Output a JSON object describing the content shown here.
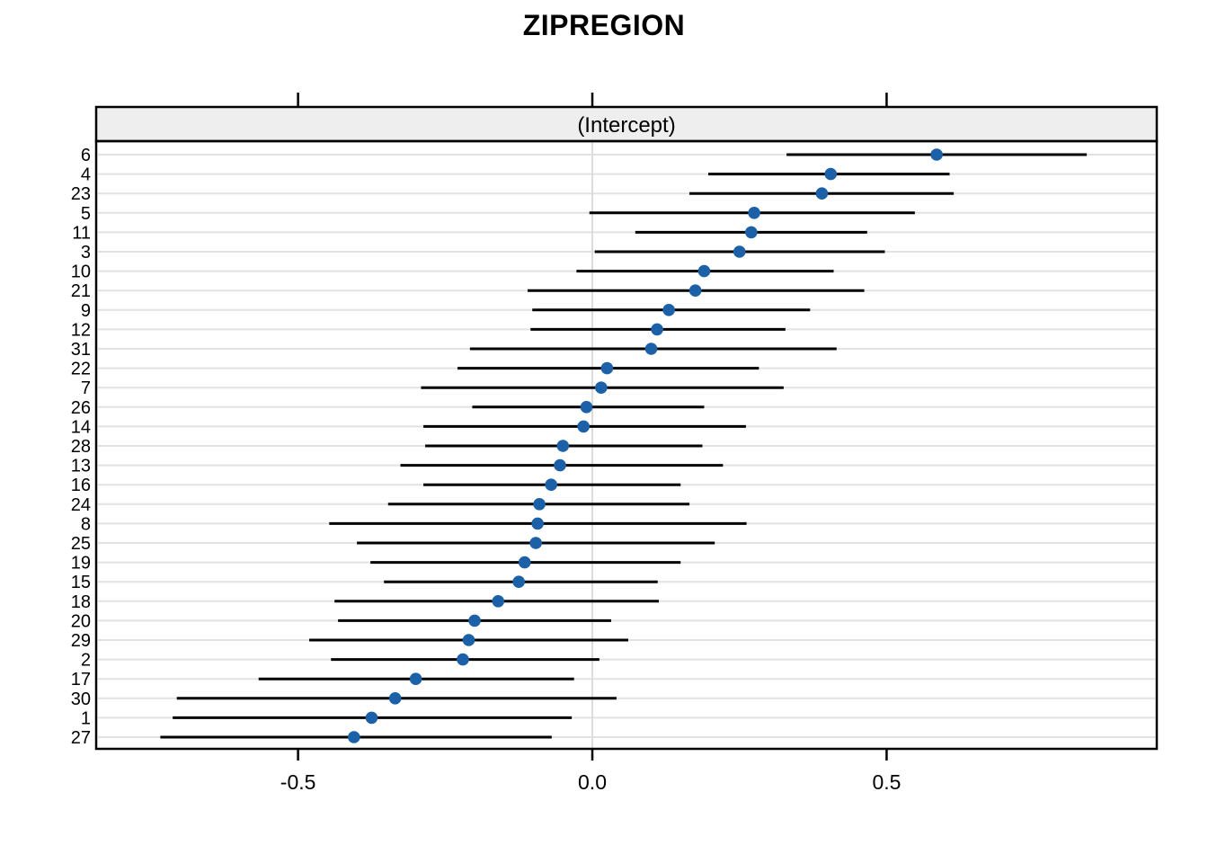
{
  "chart_data": {
    "type": "scatter",
    "subtype": "caterpillar-dotplot-with-intervals",
    "title": "ZIPREGION",
    "strip_label": "(Intercept)",
    "xlabel": "",
    "ylabel": "",
    "xlim": [
      -0.843,
      0.959
    ],
    "x_ticks": [
      -0.5,
      0.0,
      0.5
    ],
    "x_tick_labels": [
      "-0.5",
      "0.0",
      "0.5"
    ],
    "grid": "horizontal line per row, vertical line at 0",
    "legend_position": "none",
    "colors": {
      "point": "#1c61a7",
      "interval_line": "#000000",
      "gridline": "#e2e2e2",
      "zero_line": "#dcdcdc",
      "strip_fill": "#eeeeee",
      "border": "#000000"
    },
    "rows": [
      {
        "id": "6",
        "est": 0.585,
        "lo": 0.33,
        "hi": 0.84
      },
      {
        "id": "4",
        "est": 0.405,
        "lo": 0.197,
        "hi": 0.607
      },
      {
        "id": "23",
        "est": 0.39,
        "lo": 0.165,
        "hi": 0.614
      },
      {
        "id": "5",
        "est": 0.275,
        "lo": -0.005,
        "hi": 0.548
      },
      {
        "id": "11",
        "est": 0.27,
        "lo": 0.073,
        "hi": 0.467
      },
      {
        "id": "3",
        "est": 0.25,
        "lo": 0.004,
        "hi": 0.497
      },
      {
        "id": "10",
        "est": 0.19,
        "lo": -0.027,
        "hi": 0.41
      },
      {
        "id": "21",
        "est": 0.175,
        "lo": -0.11,
        "hi": 0.462
      },
      {
        "id": "9",
        "est": 0.13,
        "lo": -0.102,
        "hi": 0.37
      },
      {
        "id": "12",
        "est": 0.11,
        "lo": -0.105,
        "hi": 0.328
      },
      {
        "id": "31",
        "est": 0.1,
        "lo": -0.208,
        "hi": 0.415
      },
      {
        "id": "22",
        "est": 0.025,
        "lo": -0.229,
        "hi": 0.283
      },
      {
        "id": "7",
        "est": 0.015,
        "lo": -0.291,
        "hi": 0.325
      },
      {
        "id": "26",
        "est": -0.01,
        "lo": -0.204,
        "hi": 0.19
      },
      {
        "id": "14",
        "est": -0.015,
        "lo": -0.287,
        "hi": 0.261
      },
      {
        "id": "28",
        "est": -0.05,
        "lo": -0.284,
        "hi": 0.187
      },
      {
        "id": "13",
        "est": -0.055,
        "lo": -0.326,
        "hi": 0.222
      },
      {
        "id": "16",
        "est": -0.07,
        "lo": -0.287,
        "hi": 0.15
      },
      {
        "id": "24",
        "est": -0.09,
        "lo": -0.347,
        "hi": 0.165
      },
      {
        "id": "8",
        "est": -0.093,
        "lo": -0.447,
        "hi": 0.262
      },
      {
        "id": "25",
        "est": -0.096,
        "lo": -0.4,
        "hi": 0.208
      },
      {
        "id": "19",
        "est": -0.115,
        "lo": -0.377,
        "hi": 0.15
      },
      {
        "id": "15",
        "est": -0.125,
        "lo": -0.354,
        "hi": 0.111
      },
      {
        "id": "18",
        "est": -0.16,
        "lo": -0.438,
        "hi": 0.113
      },
      {
        "id": "20",
        "est": -0.2,
        "lo": -0.432,
        "hi": 0.032
      },
      {
        "id": "29",
        "est": -0.21,
        "lo": -0.481,
        "hi": 0.061
      },
      {
        "id": "2",
        "est": -0.22,
        "lo": -0.444,
        "hi": 0.012
      },
      {
        "id": "17",
        "est": -0.3,
        "lo": -0.567,
        "hi": -0.031
      },
      {
        "id": "30",
        "est": -0.335,
        "lo": -0.706,
        "hi": 0.041
      },
      {
        "id": "1",
        "est": -0.375,
        "lo": -0.713,
        "hi": -0.035
      },
      {
        "id": "27",
        "est": -0.405,
        "lo": -0.734,
        "hi": -0.069
      }
    ]
  }
}
